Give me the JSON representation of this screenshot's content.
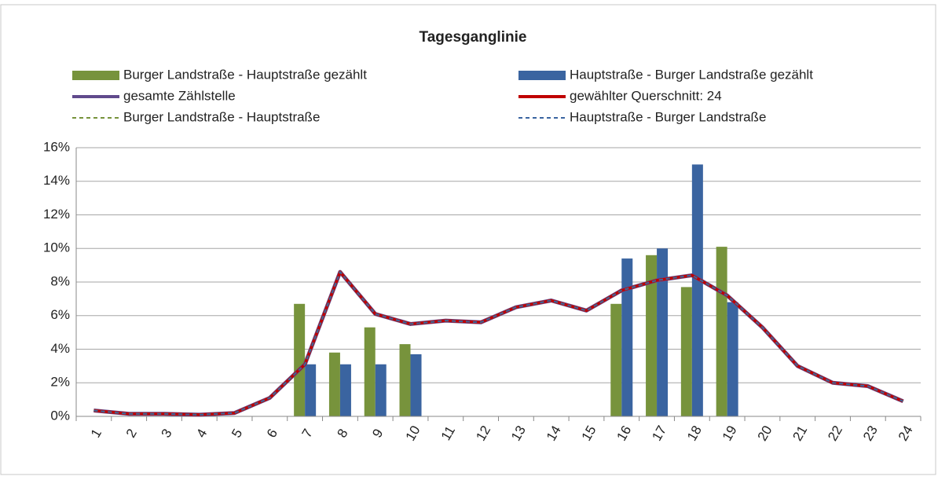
{
  "chart_data": {
    "type": "bar_line",
    "title": "Tagesganglinie",
    "categories": [
      "1",
      "2",
      "3",
      "4",
      "5",
      "6",
      "7",
      "8",
      "9",
      "10",
      "11",
      "12",
      "13",
      "14",
      "15",
      "16",
      "17",
      "18",
      "19",
      "20",
      "21",
      "22",
      "23",
      "24"
    ],
    "ylim": [
      0,
      16
    ],
    "yticks": [
      {
        "value": 0,
        "label": "0%"
      },
      {
        "value": 2,
        "label": "2%"
      },
      {
        "value": 4,
        "label": "4%"
      },
      {
        "value": 6,
        "label": "6%"
      },
      {
        "value": 8,
        "label": "8%"
      },
      {
        "value": 10,
        "label": "10%"
      },
      {
        "value": 12,
        "label": "12%"
      },
      {
        "value": 14,
        "label": "14%"
      },
      {
        "value": 16,
        "label": "16%"
      }
    ],
    "grid": true,
    "legend": "top",
    "series": [
      {
        "name": "Burger Landstraße - Hauptstraße gezählt",
        "kind": "bar",
        "color": "#77933c",
        "values": [
          null,
          null,
          null,
          null,
          null,
          null,
          6.7,
          3.8,
          5.3,
          4.3,
          null,
          null,
          null,
          null,
          null,
          6.7,
          9.6,
          7.7,
          10.1,
          null,
          null,
          null,
          null,
          null
        ]
      },
      {
        "name": "Hauptstraße - Burger Landstraße gezählt",
        "kind": "bar",
        "color": "#3a64a0",
        "values": [
          null,
          null,
          null,
          null,
          null,
          null,
          3.1,
          3.1,
          3.1,
          3.7,
          null,
          null,
          null,
          null,
          null,
          9.4,
          10.0,
          15.0,
          6.8,
          null,
          null,
          null,
          null,
          null
        ]
      },
      {
        "name": "gesamte Zählstelle",
        "kind": "line",
        "color": "#604a8c",
        "values": [
          0.35,
          0.15,
          0.15,
          0.1,
          0.2,
          1.1,
          3.1,
          8.6,
          6.1,
          5.5,
          5.7,
          5.6,
          6.5,
          6.9,
          6.3,
          7.5,
          8.1,
          8.4,
          7.2,
          5.3,
          3.0,
          2.0,
          1.8,
          0.9
        ]
      },
      {
        "name": "gewählter Querschnitt: 24",
        "kind": "line",
        "color": "#c00000",
        "values": [
          0.35,
          0.15,
          0.15,
          0.1,
          0.2,
          1.1,
          3.1,
          8.6,
          6.1,
          5.5,
          5.7,
          5.6,
          6.5,
          6.9,
          6.3,
          7.5,
          8.1,
          8.4,
          7.2,
          5.3,
          3.0,
          2.0,
          1.8,
          0.9
        ]
      },
      {
        "name": "Burger Landstraße - Hauptstraße",
        "kind": "dashed",
        "color": "#77933c",
        "values": [
          0.35,
          0.15,
          0.15,
          0.1,
          0.2,
          1.1,
          3.1,
          8.6,
          6.1,
          5.5,
          5.7,
          5.6,
          6.5,
          6.9,
          6.3,
          7.5,
          8.1,
          8.4,
          7.2,
          5.3,
          3.0,
          2.0,
          1.8,
          0.9
        ]
      },
      {
        "name": "Hauptstraße - Burger Landstraße",
        "kind": "dashed",
        "color": "#3a64a0",
        "values": [
          0.35,
          0.15,
          0.15,
          0.1,
          0.2,
          1.1,
          3.1,
          8.6,
          6.1,
          5.5,
          5.7,
          5.6,
          6.5,
          6.9,
          6.3,
          7.5,
          8.1,
          8.4,
          7.2,
          5.3,
          3.0,
          2.0,
          1.8,
          0.9
        ]
      }
    ]
  }
}
